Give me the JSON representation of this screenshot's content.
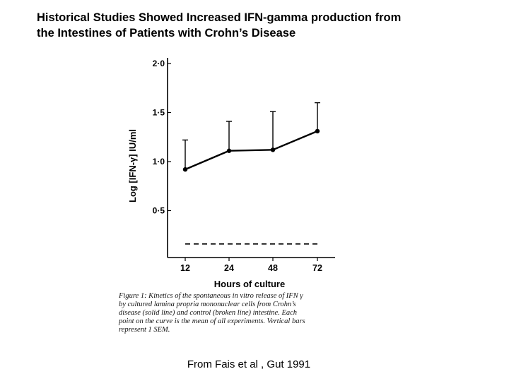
{
  "title": {
    "line1": "Historical Studies Showed Increased IFN-gamma production from",
    "line2": "the Intestines of Patients with Crohn’s Disease"
  },
  "chart_data": {
    "type": "line",
    "ylabel": "Log [IFN-γ] IU/ml",
    "xlabel": "Hours of culture",
    "categories": [
      "12",
      "24",
      "48",
      "72"
    ],
    "ylim": [
      0,
      2.0
    ],
    "yticks": [
      {
        "value": 0.5,
        "label": "0·5"
      },
      {
        "value": 1.0,
        "label": "1·0"
      },
      {
        "value": 1.5,
        "label": "1·5"
      },
      {
        "value": 2.0,
        "label": "2·0"
      }
    ],
    "series": [
      {
        "name": "Crohn's disease (solid line)",
        "style": "solid",
        "values": [
          0.92,
          1.11,
          1.12,
          1.31
        ],
        "error_upper": [
          1.22,
          1.41,
          1.51,
          1.6
        ]
      },
      {
        "name": "Control (broken line)",
        "style": "dashed",
        "values": [
          0.16,
          0.16,
          0.16,
          0.16
        ]
      }
    ]
  },
  "caption": {
    "line1": "Figure 1: Kinetics of the spontaneous in vitro release of IFN γ",
    "line2": "by cultured lamina propria mononuclear cells from Crohn’s",
    "line3": "disease (solid line) and control (broken line) intestine. Each",
    "line4": "point on the curve is the mean of all experiments. Vertical bars",
    "line5": "represent 1 SEM."
  },
  "source": "From Fais et al , Gut 1991",
  "colors": {
    "ink": "#000000",
    "background": "#ffffff"
  }
}
